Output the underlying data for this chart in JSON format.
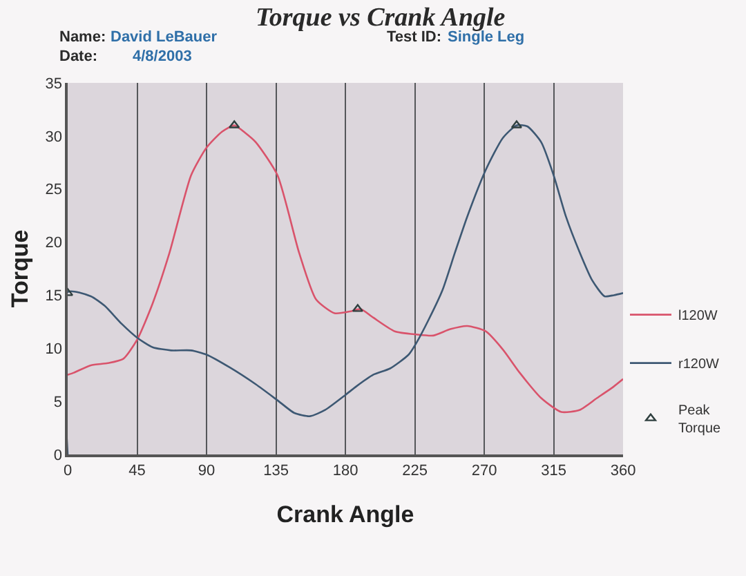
{
  "chart_data": {
    "type": "line",
    "title": "Torque vs Crank Angle",
    "xlabel": "Crank Angle",
    "ylabel": "Torque",
    "annotations": [
      "Name:",
      "David LeBauer",
      "Date:",
      "4/8/2003",
      "Test ID:",
      "Single Leg"
    ],
    "xlim": [
      0,
      360
    ],
    "xticks": [
      0,
      45,
      90,
      135,
      180,
      225,
      270,
      315,
      360
    ],
    "ylim": [
      0,
      35
    ],
    "yticks": [
      0,
      5,
      10,
      15,
      20,
      25,
      30,
      35
    ],
    "grid": "x",
    "legend": "right",
    "line_style": "solid",
    "marker": "none",
    "series": [
      {
        "name": "l120W",
        "color": "#d9536b",
        "x": [
          0,
          4,
          15,
          26,
          36,
          45,
          55,
          66,
          80,
          90,
          100,
          108,
          115,
          122,
          136,
          150,
          161,
          173,
          184,
          190,
          198,
          212,
          226,
          237,
          248,
          259,
          271,
          282,
          293,
          307,
          320,
          332,
          343,
          354,
          360
        ],
        "values": [
          7.5,
          7.7,
          8.4,
          8.6,
          9.0,
          10.8,
          14.2,
          19,
          26.3,
          28.9,
          30.4,
          31.0,
          30.3,
          29.4,
          26.3,
          19,
          14.6,
          13.3,
          13.5,
          13.7,
          12.9,
          11.6,
          11.3,
          11.2,
          11.8,
          12.1,
          11.6,
          9.9,
          7.7,
          5.3,
          4.0,
          4.2,
          5.3,
          6.4,
          7.1
        ]
      },
      {
        "name": "r120W",
        "color": "#3d5873",
        "x": [
          0,
          0,
          15,
          24,
          35,
          45,
          55,
          67,
          80,
          90,
          105,
          122,
          136,
          147,
          157,
          167,
          180,
          187,
          198,
          209,
          221,
          226,
          234,
          243,
          251,
          259,
          271,
          282,
          291,
          298,
          307,
          315,
          323,
          332,
          340,
          348,
          354,
          360
        ],
        "values": [
          0,
          15.3,
          14.9,
          14.0,
          12.3,
          11.0,
          10.1,
          9.8,
          9.8,
          9.4,
          8.2,
          6.6,
          5.1,
          3.9,
          3.6,
          4.2,
          5.6,
          6.4,
          7.5,
          8.1,
          9.4,
          10.5,
          12.7,
          15.5,
          19,
          22.4,
          26.8,
          29.8,
          31.0,
          30.9,
          29.4,
          26.3,
          22.4,
          19,
          16.4,
          14.9,
          15.0,
          15.2
        ]
      },
      {
        "name": "Peak Torque",
        "type": "scatter",
        "marker": "triangle",
        "color": "#2f3f3f",
        "x": [
          0,
          108,
          188,
          291
        ],
        "values": [
          15.2,
          31.0,
          13.7,
          31.0
        ]
      }
    ]
  }
}
